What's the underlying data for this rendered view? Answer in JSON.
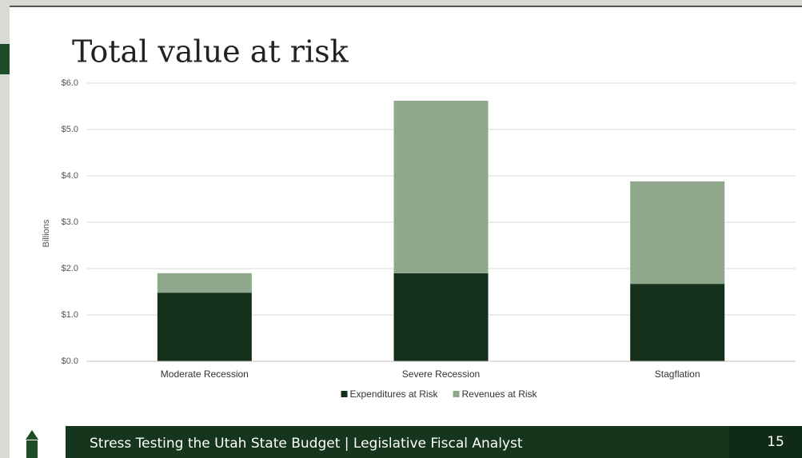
{
  "chart_data": {
    "type": "stacked-bar",
    "title": "Total value at risk",
    "y_label": "Billions",
    "categories": [
      "Moderate Recession",
      "Severe Recession",
      "Stagflation"
    ],
    "series": [
      {
        "name": "Expenditures at Risk",
        "color": "#15301a",
        "values": [
          1.48,
          1.9,
          1.67
        ]
      },
      {
        "name": "Revenues at Risk",
        "color": "#8fa88c",
        "values": [
          0.42,
          3.72,
          2.21
        ]
      }
    ],
    "ylim": [
      0,
      6
    ],
    "yticks": [
      {
        "value": 0,
        "label": "$0.0"
      },
      {
        "value": 1,
        "label": "$1.0"
      },
      {
        "value": 2,
        "label": "$2.0"
      },
      {
        "value": 3,
        "label": "$3.0"
      },
      {
        "value": 4,
        "label": "$4.0"
      },
      {
        "value": 5,
        "label": "$5.0"
      },
      {
        "value": 6,
        "label": "$6.0"
      }
    ],
    "grid": true,
    "legend": "bottom"
  },
  "footer": {
    "text": "Stress Testing the Utah State Budget | Legislative Fiscal Analyst",
    "page": "15"
  }
}
